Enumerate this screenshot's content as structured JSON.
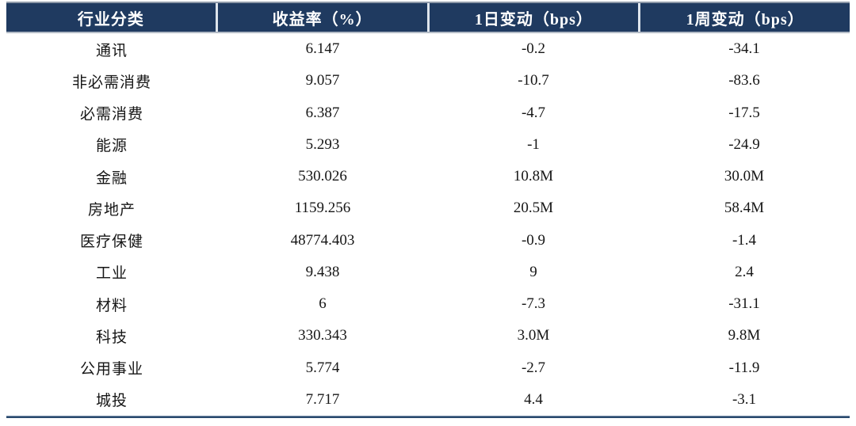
{
  "chart_data": {
    "type": "table",
    "columns": [
      "行业分类",
      "收益率（%）",
      "1日变动（bps）",
      "1周变动（bps）"
    ],
    "rows": [
      [
        "通讯",
        "6.147",
        "-0.2",
        "-34.1"
      ],
      [
        "非必需消费",
        "9.057",
        "-10.7",
        "-83.6"
      ],
      [
        "必需消费",
        "6.387",
        "-4.7",
        "-17.5"
      ],
      [
        "能源",
        "5.293",
        "-1",
        "-24.9"
      ],
      [
        "金融",
        "530.026",
        "10.8M",
        "30.0M"
      ],
      [
        "房地产",
        "1159.256",
        "20.5M",
        "58.4M"
      ],
      [
        "医疗保健",
        "48774.403",
        "-0.9",
        "-1.4"
      ],
      [
        "工业",
        "9.438",
        "9",
        "2.4"
      ],
      [
        "材料",
        "6",
        "-7.3",
        "-31.1"
      ],
      [
        "科技",
        "330.343",
        "3.0M",
        "9.8M"
      ],
      [
        "公用事业",
        "5.774",
        "-2.7",
        "-11.9"
      ],
      [
        "城投",
        "7.717",
        "4.4",
        "-3.1"
      ]
    ],
    "title": "",
    "legend": "none",
    "grid": "off"
  },
  "colors": {
    "header_bg": "#1F3A60",
    "header_text": "#FFFFFF",
    "header_divider": "#DDE4EC",
    "body_text": "#161616",
    "bottom_rule": "#2A4A6E"
  }
}
